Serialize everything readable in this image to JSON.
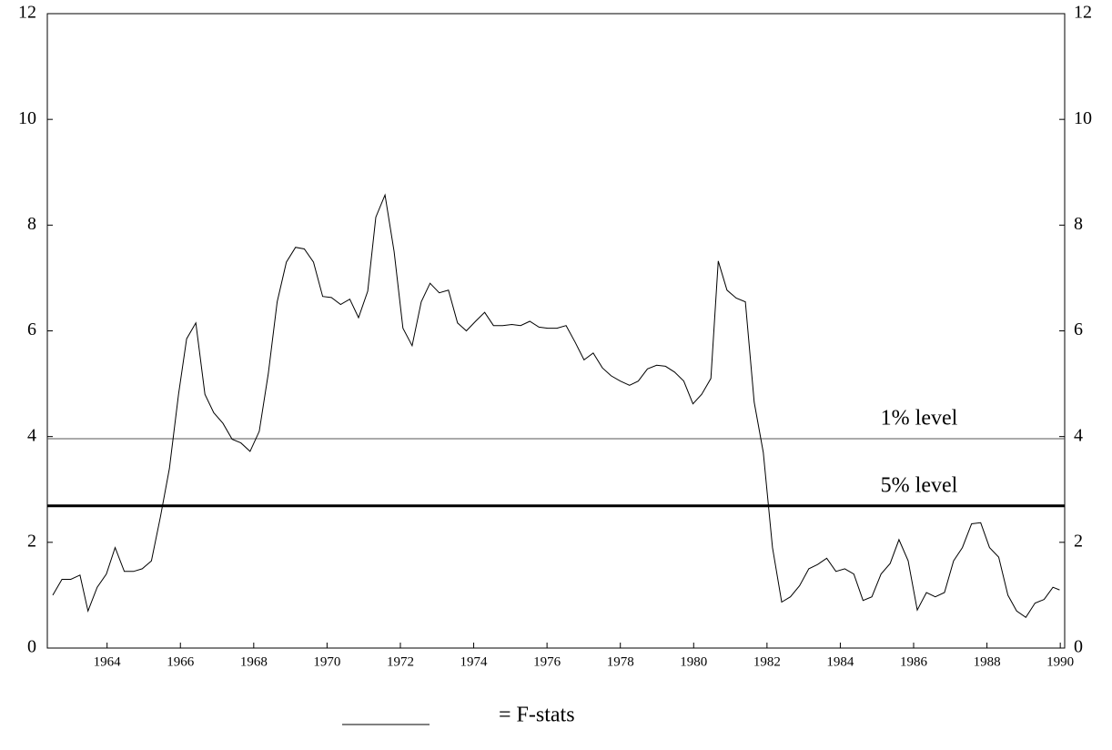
{
  "chart_data": {
    "type": "line",
    "xlim": [
      1962.37,
      1990.12
    ],
    "xticks": [
      1964,
      1966,
      1968,
      1970,
      1972,
      1974,
      1976,
      1978,
      1980,
      1982,
      1984,
      1986,
      1988,
      1990
    ],
    "ylim": [
      0,
      12
    ],
    "yticks": [
      0,
      2,
      4,
      6,
      8,
      10,
      12
    ],
    "right_axis_labels": true,
    "grid": false,
    "hlines": [
      {
        "value": 3.96,
        "label": "1% level",
        "color": "#555555",
        "stroke_width": 1
      },
      {
        "value": 2.69,
        "label": "5% level",
        "color": "#000000",
        "stroke_width": 3
      }
    ],
    "series": [
      {
        "name": "= F-stats",
        "color": "#000000",
        "x": [
          1962.52,
          1962.77,
          1963.01,
          1963.26,
          1963.48,
          1963.73,
          1963.98,
          1964.22,
          1964.47,
          1964.72,
          1964.96,
          1965.21,
          1965.46,
          1965.7,
          1965.95,
          1966.17,
          1966.42,
          1966.67,
          1966.91,
          1967.16,
          1967.41,
          1967.65,
          1967.9,
          1968.15,
          1968.4,
          1968.64,
          1968.89,
          1969.14,
          1969.38,
          1969.63,
          1969.88,
          1970.12,
          1970.37,
          1970.62,
          1970.86,
          1971.11,
          1971.33,
          1971.58,
          1971.83,
          1972.07,
          1972.32,
          1972.57,
          1972.81,
          1973.06,
          1973.31,
          1973.56,
          1973.8,
          1974.05,
          1974.3,
          1974.54,
          1974.79,
          1975.04,
          1975.28,
          1975.53,
          1975.78,
          1976.02,
          1976.27,
          1976.52,
          1976.77,
          1977.01,
          1977.26,
          1977.51,
          1977.75,
          1978.0,
          1978.25,
          1978.49,
          1978.74,
          1978.99,
          1979.23,
          1979.48,
          1979.73,
          1979.98,
          1980.22,
          1980.47,
          1980.67,
          1980.91,
          1981.16,
          1981.41,
          1981.65,
          1981.9,
          1982.15,
          1982.4,
          1982.64,
          1982.89,
          1983.14,
          1983.38,
          1983.63,
          1983.88,
          1984.12,
          1984.37,
          1984.62,
          1984.86,
          1985.11,
          1985.36,
          1985.6,
          1985.85,
          1986.1,
          1986.35,
          1986.59,
          1986.84,
          1987.09,
          1987.33,
          1987.58,
          1987.83,
          1988.07,
          1988.32,
          1988.57,
          1988.81,
          1989.06,
          1989.31,
          1989.56,
          1989.8,
          1989.98
        ],
        "values": [
          1.0,
          1.3,
          1.3,
          1.38,
          0.7,
          1.15,
          1.4,
          1.9,
          1.45,
          1.45,
          1.5,
          1.65,
          2.5,
          3.4,
          4.8,
          5.85,
          6.15,
          4.8,
          4.45,
          4.25,
          3.95,
          3.88,
          3.72,
          4.1,
          5.2,
          6.55,
          7.3,
          7.58,
          7.55,
          7.3,
          6.65,
          6.63,
          6.5,
          6.6,
          6.25,
          6.75,
          8.15,
          8.57,
          7.5,
          6.05,
          5.72,
          6.55,
          6.9,
          6.72,
          6.77,
          6.15,
          6.0,
          6.18,
          6.35,
          6.1,
          6.1,
          6.12,
          6.1,
          6.18,
          6.07,
          6.05,
          6.05,
          6.1,
          5.78,
          5.45,
          5.58,
          5.3,
          5.15,
          5.05,
          4.97,
          5.05,
          5.28,
          5.35,
          5.33,
          5.22,
          5.05,
          4.62,
          4.8,
          5.1,
          7.32,
          6.77,
          6.62,
          6.55,
          4.65,
          3.7,
          1.9,
          0.87,
          0.97,
          1.18,
          1.5,
          1.58,
          1.7,
          1.45,
          1.5,
          1.4,
          0.9,
          0.97,
          1.4,
          1.6,
          2.05,
          1.65,
          0.72,
          1.05,
          0.97,
          1.05,
          1.65,
          1.9,
          2.35,
          2.37,
          1.9,
          1.72,
          1.0,
          0.7,
          0.58,
          0.85,
          0.92,
          1.15,
          1.1
        ]
      }
    ]
  }
}
